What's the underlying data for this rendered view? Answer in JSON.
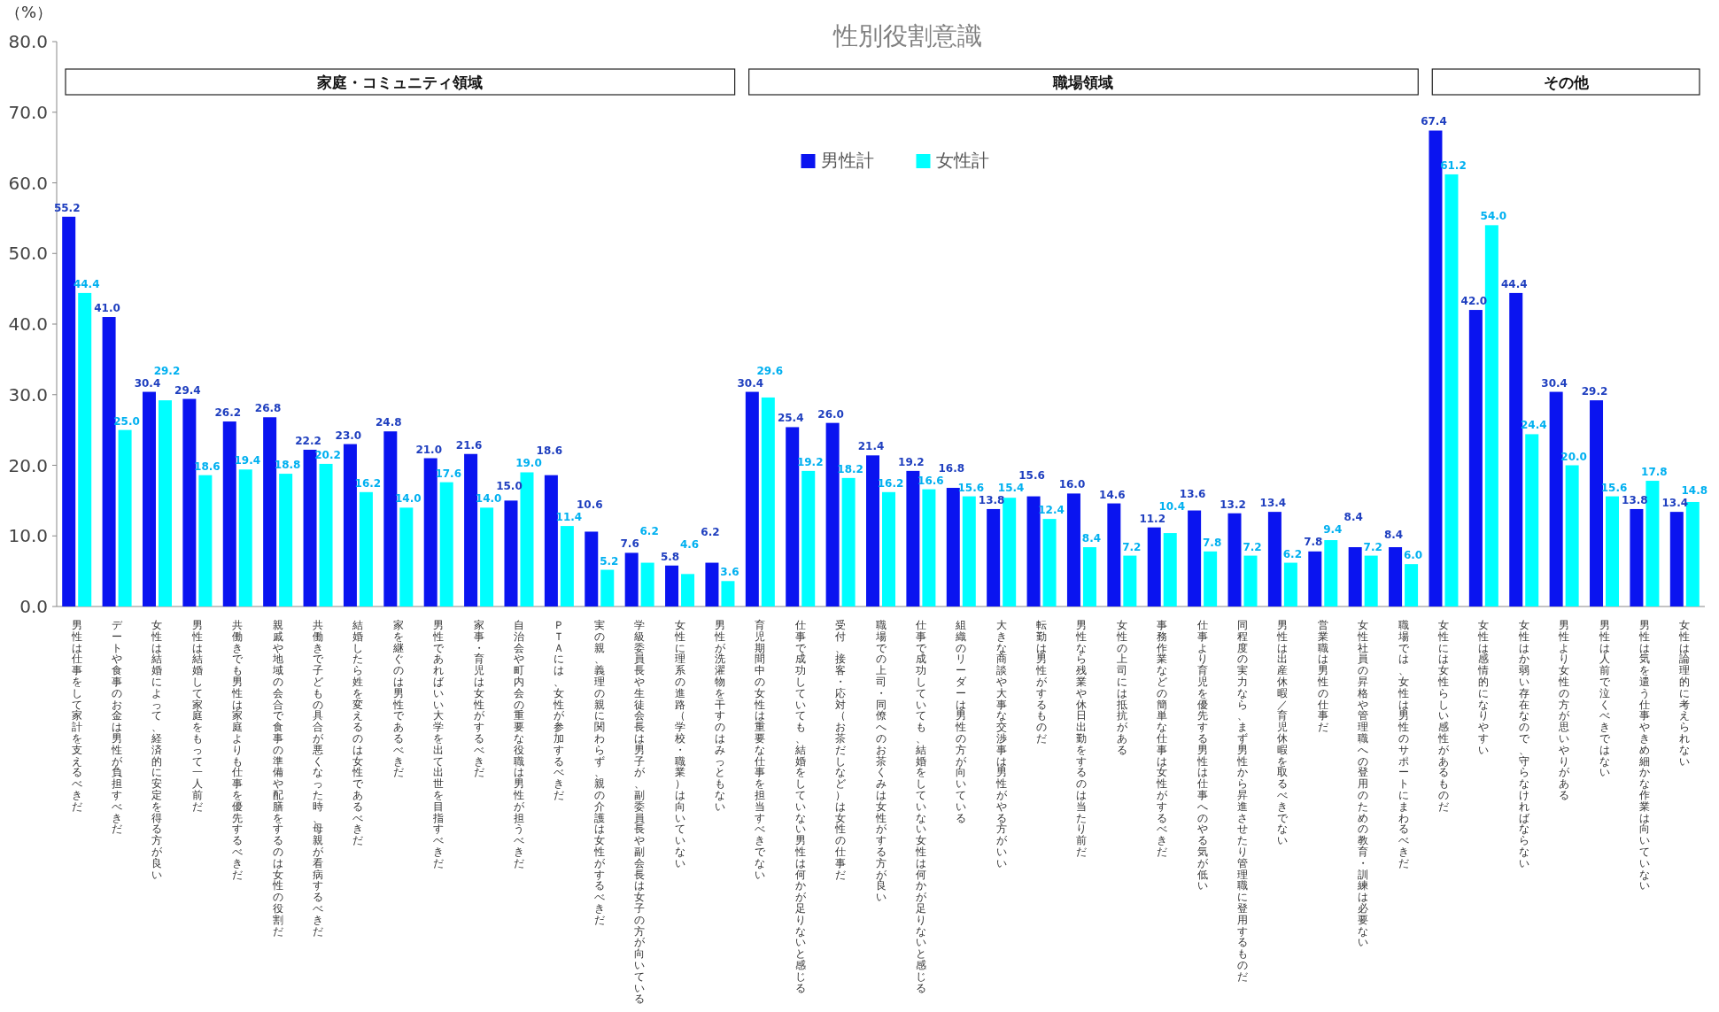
{
  "chart_data": {
    "type": "bar",
    "title": "性別役割意識",
    "ylabel": "（%）",
    "categories": [
      "男性は仕事をして家計を支えるべきだ",
      "デートや食事のお金は男性が負担すべきだ",
      "女性は結婚によって、経済的に安定を得る方が良い",
      "男性は結婚して家庭をもって一人前だ",
      "共働きでも男性は家庭よりも仕事を優先するべきだ",
      "親戚や地域の会合で食事の準備や配膳をするのは女性の役割だ",
      "共働きで子どもの具合が悪くなった時、母親が看病するべきだ",
      "結婚したら姓を変えるのは女性であるべきだ",
      "家を継ぐのは男性であるべきだ",
      "男性であればいい大学を出て出世を目指すべきだ",
      "家事・育児は女性がするべきだ",
      "自治会や町内会の重要な役職は男性が担うべきだ",
      "ＰＴＡには、女性が参加するべきだ",
      "実の親、義理の親に関わらず、親の介護は女性がするべきだ",
      "学級委員長や生徒会長は男子が、副委員長や副会長は女子の方が向いている",
      "女性に理系の進路（学校・職業）は向いていない",
      "男性が洗濯物を干すのはみっともない",
      "育児期間中の女性は重要な仕事を担当すべきでない",
      "仕事で成功していても、結婚をしていない男性は何かが足りないと感じる",
      "受付、接客・応対（お茶だしなど）は女性の仕事だ",
      "職場での上司・同僚へのお茶くみは女性がする方が良い",
      "仕事で成功していても、結婚をしていない女性は何かが足りないと感じる",
      "組織のリーダーは男性の方が向いている",
      "大きな商談や大事な交渉事は男性がやる方がいい",
      "転勤は男性がするものだ",
      "男性なら残業や休日出勤をするのは当たり前だ",
      "女性の上司には抵抗がある",
      "事務作業などの簡単な仕事は女性がするべきだ",
      "仕事より育児を優先する男性は仕事へのやる気が低い",
      "同程度の実力なら、まず男性から昇進させたり管理職に登用するものだ",
      "男性は出産休暇／育児休暇を取るべきでない",
      "営業職は男性の仕事だ",
      "女性社員の昇格や管理職への登用のための教育・訓練は必要ない",
      "職場では、女性は男性のサポートにまわるべきだ",
      "女性には女性らしい感性があるものだ",
      "女性は感情的になりやすい",
      "女性はか弱い存在なので、守らなければならない",
      "男性より女性の方が思いやりがある",
      "男性は人前で泣くべきではない",
      "男性は気を遣う仕事やきめ細かな作業は向いていない",
      "女性は論理的に考えられない"
    ],
    "series": [
      {
        "name": "男性計",
        "color": "#0a14f0",
        "values": [
          55.2,
          41.0,
          30.4,
          29.4,
          26.2,
          26.8,
          22.2,
          23.0,
          24.8,
          21.0,
          21.6,
          15.0,
          18.6,
          10.6,
          7.6,
          5.8,
          6.2,
          30.4,
          25.4,
          26.0,
          21.4,
          19.2,
          16.8,
          13.8,
          15.6,
          16.0,
          14.6,
          11.2,
          13.6,
          13.2,
          13.4,
          7.8,
          8.4,
          8.4,
          67.4,
          42.0,
          44.4,
          30.4,
          29.2,
          13.8,
          13.4
        ],
        "value_labels": [
          "55.2",
          "41.0",
          "30.4",
          "29.4",
          "26.2",
          "26.8",
          "22.2",
          "23.0",
          "24.8",
          "21.0",
          "21.6",
          "15.0",
          "18.6",
          "10.6",
          "7.6",
          "5.8",
          "6.2",
          "30.4",
          "25.4",
          "26.0",
          "21.4",
          "19.2",
          "16.8",
          "13.8",
          "15.6",
          "16.0",
          "14.6",
          "11.2",
          "13.6",
          "13.2",
          "13.4",
          "7.8",
          "8.4",
          "8.4",
          "67.4",
          "42.0",
          "44.4",
          "30.4",
          "29.2",
          "13.8",
          "13.4"
        ]
      },
      {
        "name": "女性計",
        "color": "#00ffff",
        "values": [
          44.4,
          25.0,
          29.2,
          18.6,
          19.4,
          18.8,
          20.2,
          16.2,
          14.0,
          17.6,
          14.0,
          19.0,
          11.4,
          5.2,
          6.2,
          4.6,
          3.6,
          29.6,
          19.2,
          18.2,
          16.2,
          16.6,
          15.6,
          15.4,
          12.4,
          8.4,
          7.2,
          10.4,
          7.8,
          7.2,
          6.2,
          9.4,
          7.2,
          6.0,
          61.2,
          54.0,
          24.4,
          20.0,
          15.6,
          17.8,
          14.8
        ],
        "value_labels": [
          "44.4",
          "25.0",
          "29.2",
          "18.6",
          "19.4",
          "18.8",
          "20.2",
          "16.2",
          "14.0",
          "17.6",
          "14.0",
          "19.0",
          "11.4",
          "5.2",
          "6.2",
          "4.6",
          "3.6",
          "29.6",
          "19.2",
          "18.2",
          "16.2",
          "16.6",
          "15.6",
          "15.4",
          "12.4",
          "8.4",
          "7.2",
          "10.4",
          "7.8",
          "7.2",
          "6.2",
          "9.4",
          "7.2",
          "6.0",
          "61.2",
          "54.0",
          "24.4",
          "20.0",
          "15.6",
          "17.8",
          "14.8"
        ]
      }
    ],
    "ylim": [
      0,
      80
    ],
    "yticks": [
      {
        "value": 0,
        "label": "0.0"
      },
      {
        "value": 10,
        "label": "10.0"
      },
      {
        "value": 20,
        "label": "20.0"
      },
      {
        "value": 30,
        "label": "30.0"
      },
      {
        "value": 40,
        "label": "40.0"
      },
      {
        "value": 50,
        "label": "50.0"
      },
      {
        "value": 60,
        "label": "60.0"
      },
      {
        "value": 70,
        "label": "70.0"
      },
      {
        "value": 80,
        "label": "80.0"
      }
    ],
    "bands": [
      {
        "axis": "x",
        "from": "男性は仕事をして家計を支えるべきだ",
        "to": "男性が洗濯物を干すのはみっともない",
        "label": "家庭・コミュニティ領域"
      },
      {
        "axis": "x",
        "from": "育児期間中の女性は重要な仕事を担当すべきでない",
        "to": "職場では、女性は男性のサポートにまわるべきだ",
        "label": "職場領域"
      },
      {
        "axis": "x",
        "from": "女性には女性らしい感性があるものだ",
        "to": "女性は論理的に考えられない",
        "label": "その他"
      }
    ],
    "legend": "top",
    "grid": false
  }
}
